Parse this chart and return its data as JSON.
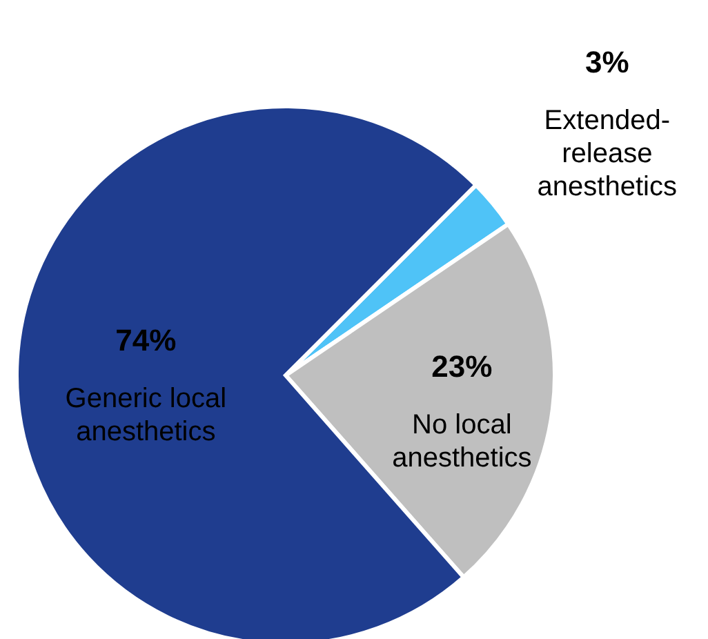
{
  "chart_data": {
    "type": "pie",
    "categories": [
      "Extended-release anesthetics",
      "No local anesthetics",
      "Generic local anesthetics"
    ],
    "values": [
      3,
      23,
      74
    ],
    "value_labels": [
      "3%",
      "23%",
      "74%"
    ],
    "colors": [
      "#4fc3f7",
      "#bfbfbf",
      "#1f3d8f"
    ]
  }
}
